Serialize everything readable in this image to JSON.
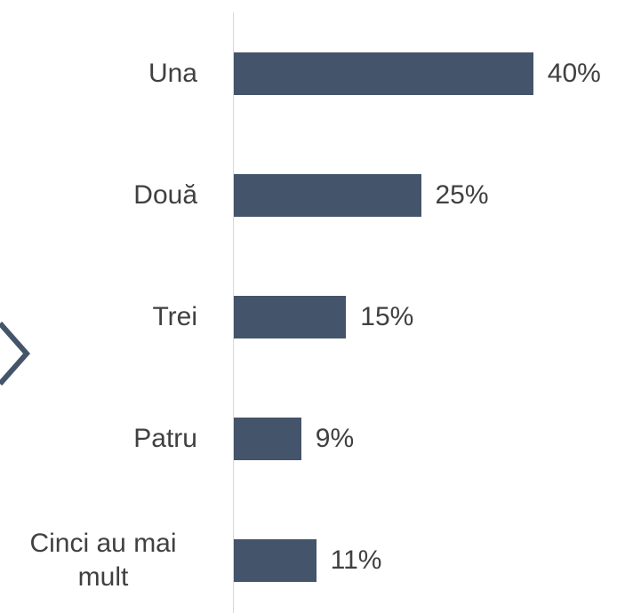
{
  "chart_data": {
    "type": "bar",
    "orientation": "horizontal",
    "categories": [
      "Una",
      "Două",
      "Trei",
      "Patru",
      "Cinci au mai mult"
    ],
    "values": [
      40,
      25,
      15,
      9,
      11
    ],
    "value_labels": [
      "40%",
      "25%",
      "15%",
      "9%",
      "11%"
    ],
    "color": "#44546a"
  }
}
